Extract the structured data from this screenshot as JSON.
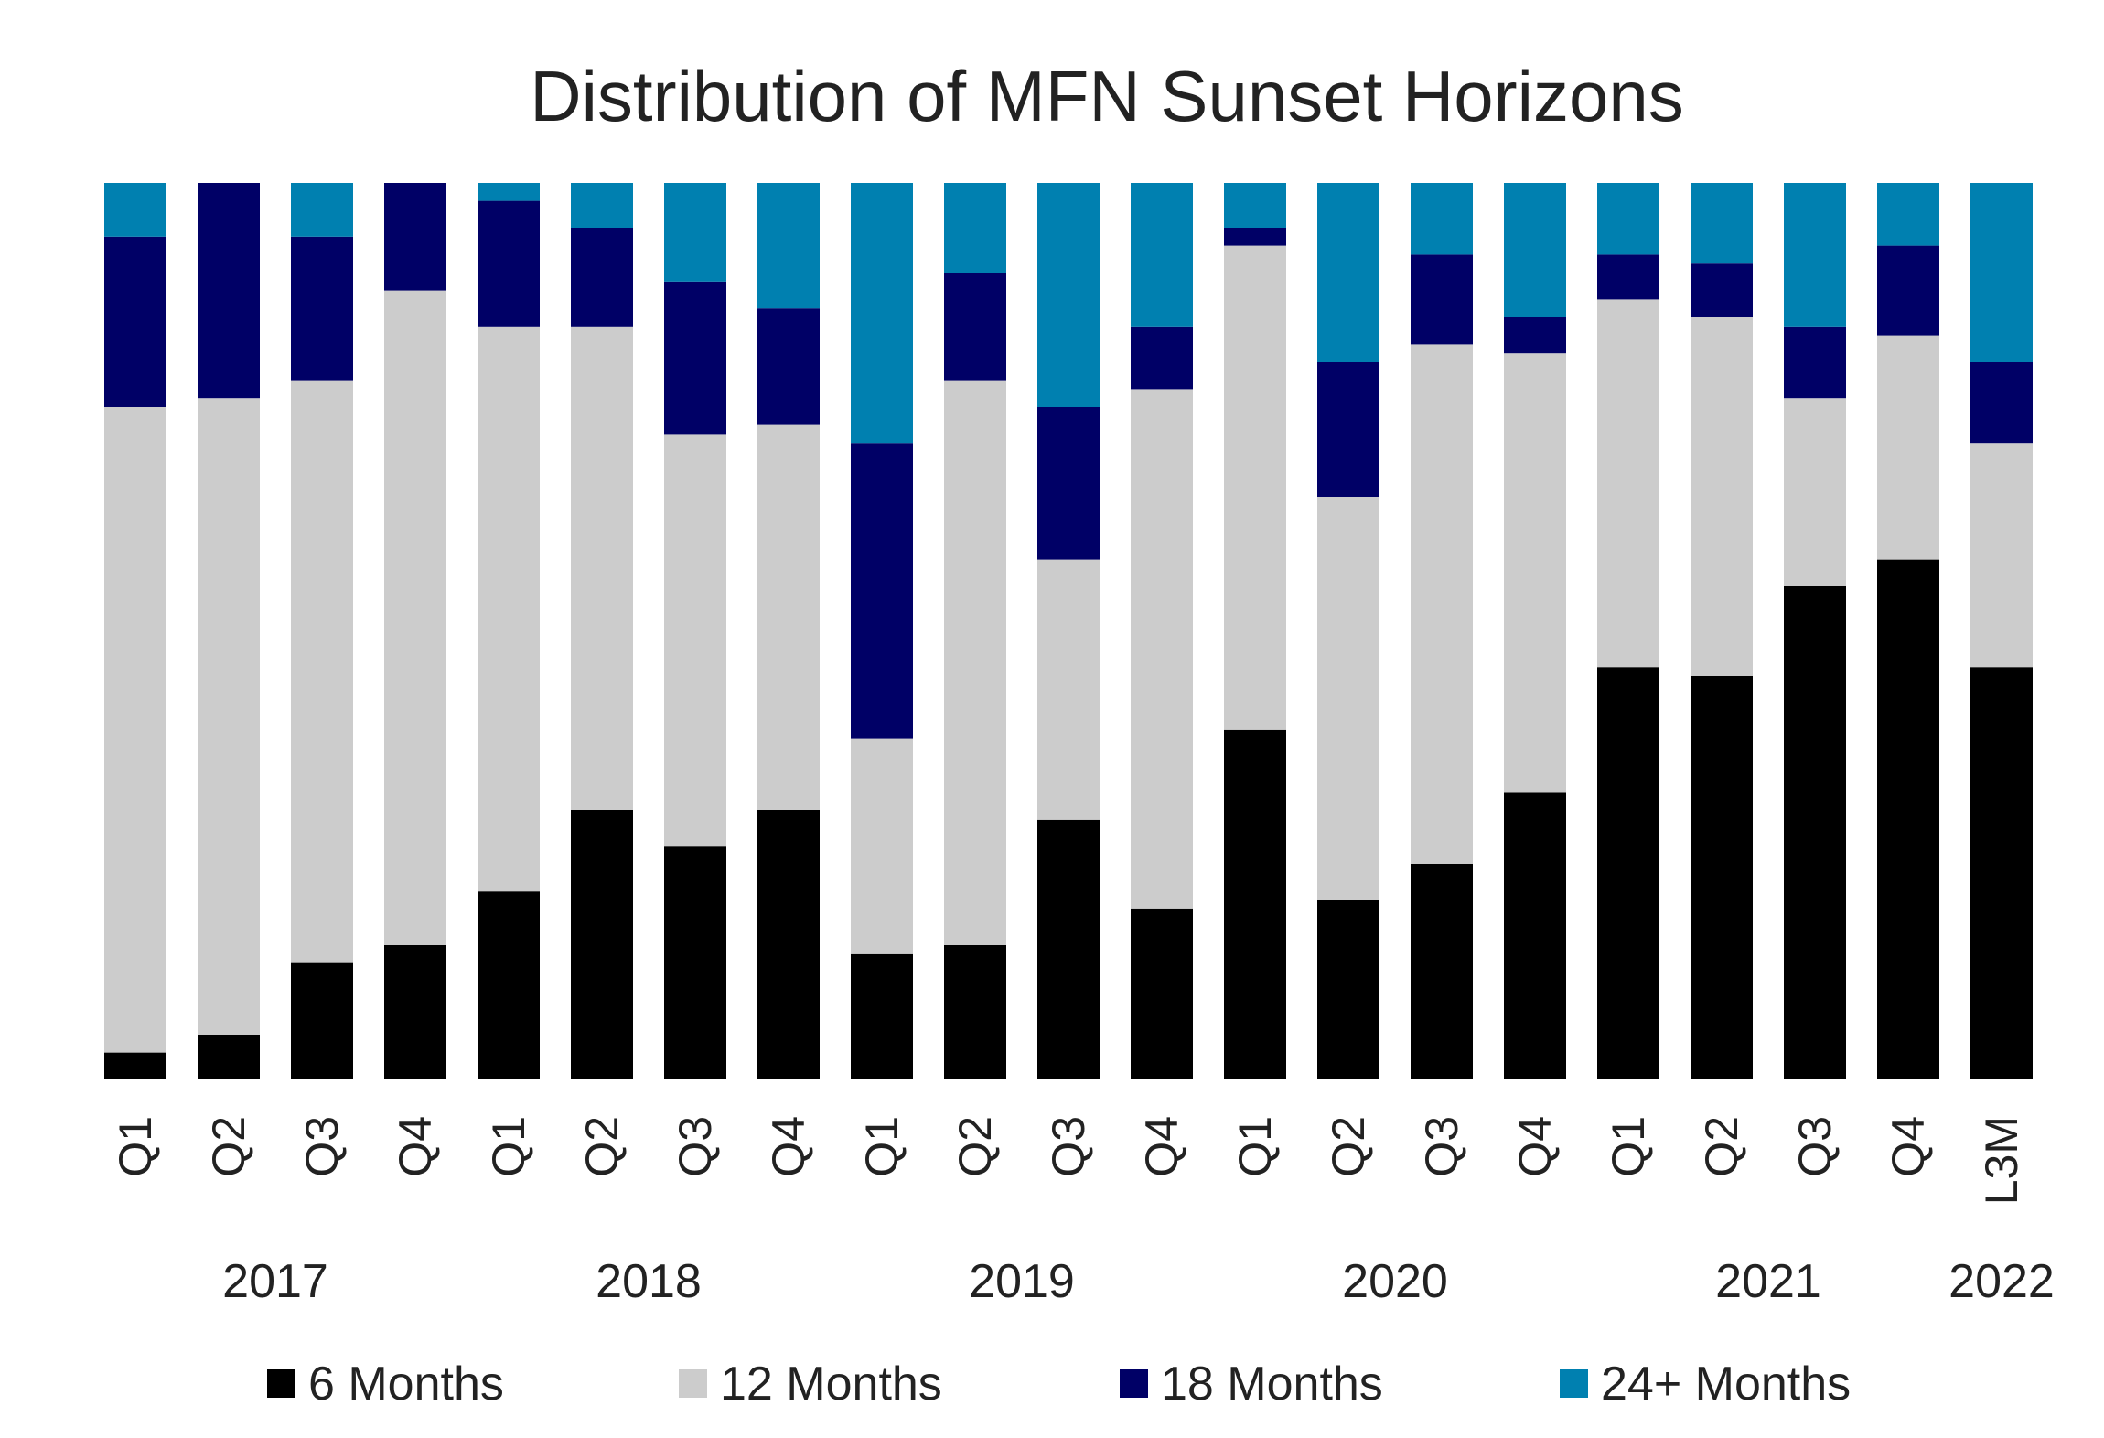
{
  "chart_data": {
    "type": "bar",
    "stacked": true,
    "normalized": true,
    "title": "Distribution of MFN Sunset Horizons",
    "xlabel": "",
    "ylabel": "",
    "ylim": [
      0,
      100
    ],
    "grid": false,
    "legend_position": "bottom",
    "categories": [
      "Q1",
      "Q2",
      "Q3",
      "Q4",
      "Q1",
      "Q2",
      "Q3",
      "Q4",
      "Q1",
      "Q2",
      "Q3",
      "Q4",
      "Q1",
      "Q2",
      "Q3",
      "Q4",
      "Q1",
      "Q2",
      "Q3",
      "Q4",
      "L3M"
    ],
    "year_groups": [
      {
        "label": "2017",
        "start": 0,
        "end": 3
      },
      {
        "label": "2018",
        "start": 4,
        "end": 7
      },
      {
        "label": "2019",
        "start": 8,
        "end": 11
      },
      {
        "label": "2020",
        "start": 12,
        "end": 15
      },
      {
        "label": "2021",
        "start": 16,
        "end": 19
      },
      {
        "label": "2022",
        "start": 20,
        "end": 20
      }
    ],
    "series": [
      {
        "name": "6 Months",
        "color": "#000000",
        "values": [
          3,
          5,
          13,
          15,
          21,
          30,
          26,
          30,
          14,
          15,
          29,
          19,
          39,
          20,
          24,
          32,
          46,
          45,
          55,
          58,
          46
        ]
      },
      {
        "name": "12 Months",
        "color": "#cccccc",
        "values": [
          72,
          71,
          65,
          73,
          63,
          54,
          46,
          43,
          24,
          63,
          29,
          58,
          54,
          45,
          58,
          49,
          41,
          40,
          21,
          25,
          25
        ]
      },
      {
        "name": "18 Months",
        "color": "#000066",
        "values": [
          19,
          24,
          16,
          12,
          14,
          11,
          17,
          13,
          33,
          12,
          17,
          7,
          2,
          15,
          10,
          4,
          5,
          6,
          8,
          10,
          9
        ]
      },
      {
        "name": "24+ Months",
        "color": "#0080b0",
        "values": [
          6,
          0,
          6,
          0,
          2,
          5,
          11,
          14,
          29,
          10,
          25,
          16,
          5,
          20,
          8,
          15,
          8,
          9,
          16,
          7,
          20
        ]
      }
    ]
  }
}
